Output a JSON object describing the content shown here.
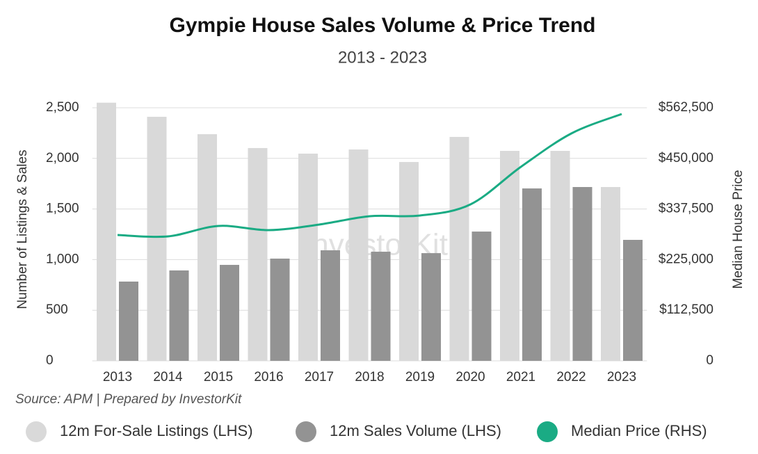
{
  "chart_data": {
    "type": "bar_line",
    "title": "Gympie House Sales Volume & Price Trend",
    "subtitle": "2013 - 2023",
    "y_label": "Number of Listings & Sales",
    "y2_label": "Median House Price",
    "source": "Source: APM | Prepared by InvestorKit",
    "watermark": "InvestorKit",
    "categories": [
      "2013",
      "2014",
      "2015",
      "2016",
      "2017",
      "2018",
      "2019",
      "2020",
      "2021",
      "2022",
      "2023"
    ],
    "series": [
      {
        "name": "12m For-Sale Listings (LHS)",
        "color": "#d9d9d9",
        "type": "bar",
        "values": [
          2550,
          2411,
          2239,
          2102,
          2047,
          2088,
          1964,
          2212,
          2074,
          2074,
          1717
        ]
      },
      {
        "name": "12m Sales Volume (LHS)",
        "color": "#939393",
        "type": "bar",
        "values": [
          783,
          893,
          948,
          1010,
          1092,
          1078,
          1064,
          1277,
          1703,
          1717,
          1195
        ]
      },
      {
        "name": "Median Price (RHS)",
        "color": "#1aab84",
        "type": "line",
        "axis": "y2",
        "values": [
          279700,
          276600,
          299800,
          290500,
          302900,
          321400,
          323000,
          347700,
          431100,
          505300,
          548600
        ]
      }
    ],
    "ylim": [
      0,
      2500
    ],
    "yticks": [
      0,
      500,
      {
        "value": 1000,
        "label": "1,000"
      },
      {
        "value": 1500,
        "label": "1,500"
      },
      {
        "value": 2000,
        "label": "2,000"
      },
      {
        "value": 2500,
        "label": "2,500"
      }
    ],
    "y2lim": [
      0,
      562500
    ],
    "y2ticks": [
      0,
      {
        "value": 112500,
        "label": "$112,500"
      },
      {
        "value": 225000,
        "label": "$225,000"
      },
      {
        "value": 337500,
        "label": "$337,500"
      },
      {
        "value": 450000,
        "label": "$450,000"
      },
      {
        "value": 562500,
        "label": "$562,500"
      }
    ],
    "grid": true
  }
}
